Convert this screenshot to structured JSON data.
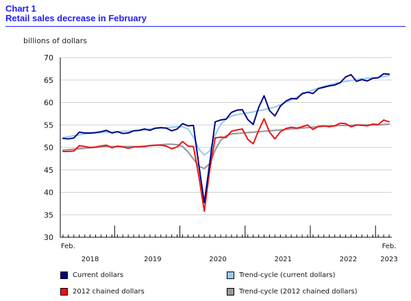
{
  "header": {
    "chart_number": "Chart 1",
    "title": "Retail sales decrease in February"
  },
  "chart_data": {
    "type": "line",
    "title": "Retail sales decrease in February",
    "ylabel": "billions of dollars",
    "xlabel": "",
    "ylim": [
      30,
      70
    ],
    "yticks": [
      30,
      35,
      40,
      45,
      50,
      55,
      60,
      65,
      70
    ],
    "grid": true,
    "start_label": "Feb.",
    "end_label": "Feb.",
    "year_labels": [
      "2018",
      "2019",
      "2020",
      "2021",
      "2022",
      "2023"
    ],
    "months": 61,
    "series": [
      {
        "name": "Current dollars",
        "color": "#000080",
        "values": [
          52.0,
          51.9,
          52.1,
          53.4,
          53.2,
          53.2,
          53.3,
          53.5,
          53.8,
          53.2,
          53.5,
          53.1,
          53.2,
          53.7,
          53.8,
          54.1,
          53.8,
          54.3,
          54.4,
          54.3,
          53.7,
          54.1,
          55.3,
          54.8,
          54.9,
          46.0,
          37.7,
          46.5,
          55.7,
          56.1,
          56.3,
          57.8,
          58.3,
          58.4,
          56.2,
          55.1,
          58.9,
          61.5,
          58.2,
          57.0,
          59.2,
          60.3,
          60.9,
          60.8,
          62.0,
          62.3,
          62.0,
          63.1,
          63.4,
          63.7,
          63.9,
          64.4,
          65.7,
          66.2,
          64.7,
          65.1,
          64.8,
          65.4,
          65.5,
          66.4,
          66.3
        ]
      },
      {
        "name": "2012 chained dollars",
        "color": "#ee1111",
        "values": [
          49.1,
          49.1,
          49.2,
          50.4,
          50.2,
          50.0,
          50.1,
          50.3,
          50.5,
          49.9,
          50.3,
          50.1,
          49.8,
          50.1,
          50.1,
          50.2,
          50.4,
          50.5,
          50.5,
          50.3,
          49.7,
          50.1,
          51.3,
          50.3,
          50.2,
          43.5,
          35.8,
          45.0,
          52.1,
          52.3,
          52.2,
          53.6,
          53.9,
          54.1,
          51.8,
          50.8,
          53.8,
          56.4,
          53.4,
          51.9,
          53.5,
          54.2,
          54.5,
          54.3,
          54.6,
          55.0,
          54.0,
          54.7,
          54.8,
          54.6,
          54.8,
          55.4,
          55.3,
          54.6,
          55.0,
          54.9,
          54.8,
          55.2,
          55.1,
          56.1,
          55.7
        ]
      },
      {
        "name": "Trend-cycle (current dollars)",
        "color": "#99ccee",
        "values": [
          52.2,
          52.4,
          52.6,
          52.8,
          53.0,
          53.1,
          53.2,
          53.3,
          53.4,
          53.4,
          53.5,
          53.6,
          53.6,
          53.7,
          53.8,
          53.9,
          54.1,
          54.2,
          54.3,
          54.4,
          54.5,
          54.6,
          54.6,
          54.1,
          52.3,
          49.6,
          48.3,
          49.2,
          52.8,
          55.1,
          56.3,
          57.0,
          57.3,
          57.5,
          57.7,
          57.9,
          58.2,
          58.4,
          58.7,
          59.0,
          59.5,
          60.0,
          60.6,
          61.2,
          61.8,
          62.3,
          62.8,
          63.2,
          63.6,
          63.9,
          64.2,
          64.5,
          64.7,
          64.9,
          65.1,
          65.3,
          65.4,
          65.5,
          65.6,
          65.8,
          66.0
        ]
      },
      {
        "name": "Trend-cycle (2012 chained dollars)",
        "color": "#999999",
        "values": [
          49.4,
          49.5,
          49.6,
          49.7,
          49.8,
          49.9,
          50.0,
          50.1,
          50.2,
          50.2,
          50.2,
          50.2,
          50.2,
          50.2,
          50.2,
          50.3,
          50.4,
          50.5,
          50.6,
          50.7,
          50.7,
          50.6,
          50.2,
          49.0,
          47.4,
          45.8,
          45.3,
          46.4,
          49.4,
          51.6,
          52.6,
          53.0,
          53.1,
          53.2,
          53.3,
          53.4,
          53.5,
          53.6,
          53.7,
          53.8,
          53.9,
          54.0,
          54.1,
          54.2,
          54.3,
          54.4,
          54.5,
          54.6,
          54.7,
          54.8,
          54.8,
          54.9,
          54.9,
          54.9,
          55.0,
          55.0,
          55.0,
          55.0,
          55.0,
          55.1,
          55.2
        ]
      }
    ],
    "legend": [
      "Current dollars",
      "Trend-cycle (current dollars)",
      "2012 chained dollars",
      "Trend-cycle (2012 chained dollars)"
    ]
  }
}
